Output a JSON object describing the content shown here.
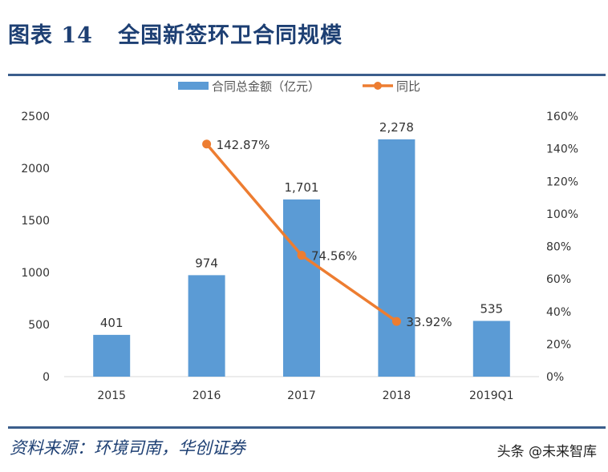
{
  "header": {
    "title": "图表 14   全国新签环卫合同规模"
  },
  "footer": {
    "source": "资料来源：环境司南，华创证券",
    "watermark": "头条 @未来智库"
  },
  "colors": {
    "bar": "#5B9BD5",
    "line": "#ED7D31",
    "title": "#1d3f73"
  },
  "chart_data": {
    "type": "bar+line",
    "categories": [
      "2015",
      "2016",
      "2017",
      "2018",
      "2019Q1"
    ],
    "legend_position": "top",
    "grid": false,
    "series": [
      {
        "name": "合同总金额（亿元）",
        "type": "bar",
        "axis": "left",
        "values": [
          401,
          974,
          1701,
          2278,
          535
        ],
        "labels": [
          "401",
          "974",
          "1,701",
          "2,278",
          "535"
        ]
      },
      {
        "name": "同比",
        "type": "line",
        "axis": "right",
        "values": [
          null,
          142.87,
          74.56,
          33.92,
          null
        ],
        "labels": [
          "",
          "142.87%",
          "74.56%",
          "33.92%",
          ""
        ]
      }
    ],
    "y_left": {
      "range": [
        0,
        2500
      ],
      "ticks": [
        "0",
        "500",
        "1000",
        "1500",
        "2000",
        "2500"
      ]
    },
    "y_right": {
      "range": [
        0,
        160
      ],
      "ticks": [
        "0%",
        "20%",
        "40%",
        "60%",
        "80%",
        "100%",
        "120%",
        "140%",
        "160%"
      ]
    }
  }
}
